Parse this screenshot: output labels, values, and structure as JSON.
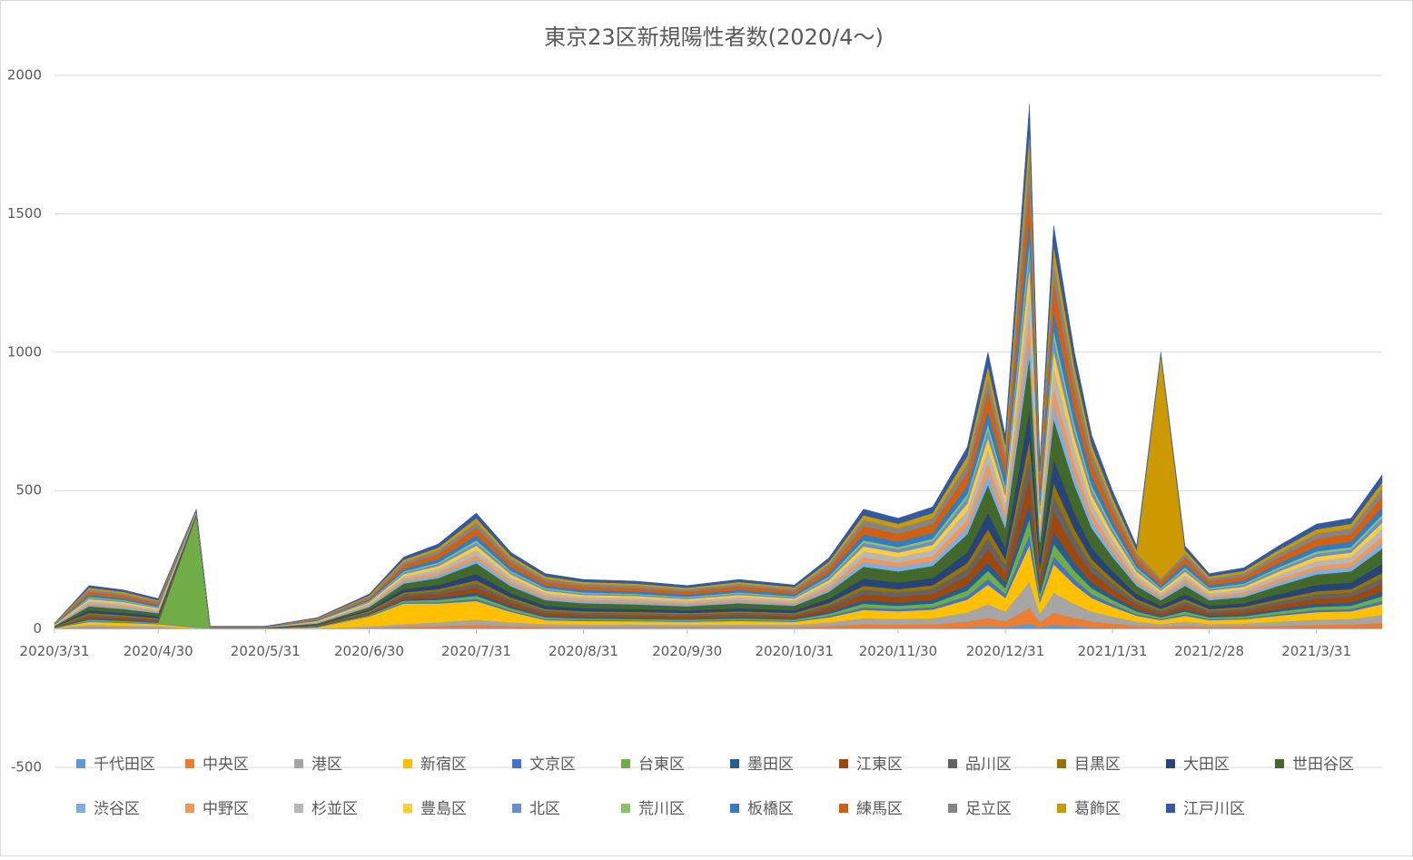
{
  "chart_data": {
    "type": "stacked_area",
    "title": "東京23区新規陽性者数(2020/4～)",
    "x": [
      "2020/3/31",
      "2020/4/10",
      "2020/4/20",
      "2020/4/30",
      "2020/5/11",
      "2020/5/15",
      "2020/5/31",
      "2020/6/15",
      "2020/6/30",
      "2020/7/10",
      "2020/7/20",
      "2020/7/31",
      "2020/8/10",
      "2020/8/20",
      "2020/8/31",
      "2020/9/15",
      "2020/9/30",
      "2020/10/15",
      "2020/10/31",
      "2020/11/10",
      "2020/11/20",
      "2020/11/30",
      "2020/12/10",
      "2020/12/20",
      "2020/12/26",
      "2020/12/31",
      "2021/1/7",
      "2021/1/10",
      "2021/1/14",
      "2021/1/20",
      "2021/1/25",
      "2021/1/31",
      "2021/2/7",
      "2021/2/14",
      "2021/2/21",
      "2021/2/28",
      "2021/3/10",
      "2021/3/20",
      "2021/3/31",
      "2021/4/10",
      "2021/4/19"
    ],
    "xlim": [
      "2020/3/31",
      "2021/4/19"
    ],
    "xticks": [
      "2020/3/31",
      "2020/4/30",
      "2020/5/31",
      "2020/6/30",
      "2020/7/31",
      "2020/8/31",
      "2020/9/30",
      "2020/10/31",
      "2020/11/30",
      "2020/12/31",
      "2021/1/31",
      "2021/2/28",
      "2021/3/31"
    ],
    "ylim": [
      -500,
      2000
    ],
    "yticks": [
      -500,
      0,
      500,
      1000,
      1500,
      2000
    ],
    "grid": true,
    "series": [
      {
        "name": "千代田区",
        "color": "#5b9bd5",
        "values": [
          0,
          2,
          1,
          1,
          0,
          0,
          0,
          0,
          1,
          2,
          3,
          4,
          3,
          2,
          2,
          2,
          2,
          2,
          2,
          3,
          4,
          4,
          4,
          7,
          10,
          7,
          19,
          6,
          15,
          10,
          7,
          5,
          3,
          2,
          3,
          2,
          2,
          3,
          4,
          4,
          6
        ]
      },
      {
        "name": "中央区",
        "color": "#ed7d31",
        "values": [
          1,
          5,
          4,
          3,
          1,
          0,
          0,
          1,
          3,
          6,
          8,
          11,
          8,
          6,
          5,
          5,
          5,
          5,
          5,
          8,
          13,
          12,
          13,
          20,
          30,
          21,
          57,
          18,
          44,
          30,
          21,
          15,
          9,
          6,
          9,
          6,
          7,
          9,
          11,
          12,
          17
        ]
      },
      {
        "name": "港区",
        "color": "#a5a5a5",
        "values": [
          1,
          8,
          7,
          6,
          2,
          1,
          1,
          2,
          5,
          10,
          13,
          19,
          13,
          10,
          9,
          9,
          8,
          9,
          8,
          13,
          22,
          20,
          22,
          33,
          50,
          35,
          95,
          30,
          73,
          50,
          35,
          25,
          15,
          10,
          15,
          10,
          11,
          15,
          19,
          20,
          28
        ]
      },
      {
        "name": "新宿区",
        "color": "#ffc000",
        "values": [
          1,
          11,
          10,
          8,
          2,
          1,
          1,
          3,
          36,
          74,
          68,
          67,
          38,
          14,
          13,
          12,
          11,
          13,
          11,
          18,
          30,
          28,
          31,
          46,
          70,
          49,
          132,
          42,
          102,
          70,
          49,
          35,
          21,
          14,
          21,
          14,
          15,
          21,
          27,
          28,
          39
        ]
      },
      {
        "name": "文京区",
        "color": "#4472c4",
        "values": [
          0,
          3,
          3,
          2,
          1,
          0,
          0,
          1,
          2,
          4,
          5,
          8,
          5,
          4,
          4,
          3,
          3,
          4,
          3,
          5,
          9,
          8,
          9,
          13,
          20,
          14,
          38,
          12,
          29,
          20,
          14,
          10,
          6,
          4,
          6,
          4,
          4,
          6,
          8,
          8,
          11
        ]
      },
      {
        "name": "台東区",
        "color": "#70ad47",
        "values": [
          1,
          5,
          4,
          3,
          401,
          0,
          0,
          1,
          3,
          6,
          8,
          11,
          8,
          6,
          5,
          5,
          5,
          5,
          5,
          8,
          13,
          12,
          13,
          20,
          30,
          21,
          57,
          18,
          44,
          30,
          21,
          15,
          9,
          6,
          9,
          6,
          7,
          9,
          11,
          12,
          17
        ]
      },
      {
        "name": "墨田区",
        "color": "#255e91",
        "values": [
          1,
          5,
          4,
          3,
          1,
          0,
          0,
          1,
          3,
          6,
          8,
          11,
          8,
          6,
          5,
          5,
          5,
          5,
          5,
          8,
          13,
          12,
          13,
          20,
          30,
          21,
          57,
          18,
          44,
          30,
          21,
          15,
          9,
          6,
          9,
          6,
          7,
          9,
          11,
          12,
          17
        ]
      },
      {
        "name": "江東区",
        "color": "#9e480e",
        "values": [
          1,
          8,
          7,
          6,
          2,
          1,
          1,
          2,
          5,
          10,
          13,
          19,
          13,
          10,
          9,
          9,
          8,
          9,
          8,
          13,
          22,
          20,
          22,
          33,
          50,
          35,
          95,
          30,
          73,
          50,
          35,
          25,
          15,
          10,
          15,
          10,
          11,
          15,
          19,
          20,
          28
        ]
      },
      {
        "name": "品川区",
        "color": "#636363",
        "values": [
          1,
          6,
          6,
          4,
          1,
          0,
          0,
          2,
          4,
          8,
          10,
          15,
          10,
          8,
          7,
          7,
          6,
          7,
          6,
          10,
          17,
          16,
          18,
          26,
          40,
          28,
          76,
          24,
          58,
          40,
          28,
          20,
          12,
          8,
          12,
          8,
          9,
          12,
          15,
          16,
          22
        ]
      },
      {
        "name": "目黒区",
        "color": "#997300",
        "values": [
          1,
          5,
          4,
          3,
          1,
          0,
          0,
          1,
          3,
          6,
          8,
          11,
          8,
          6,
          5,
          5,
          5,
          5,
          5,
          8,
          13,
          12,
          13,
          20,
          30,
          21,
          57,
          18,
          44,
          30,
          21,
          15,
          9,
          6,
          9,
          6,
          7,
          9,
          11,
          12,
          17
        ]
      },
      {
        "name": "大田区",
        "color": "#264478",
        "values": [
          1,
          9,
          8,
          7,
          2,
          1,
          1,
          2,
          5,
          12,
          15,
          23,
          15,
          12,
          11,
          10,
          9,
          11,
          10,
          15,
          26,
          24,
          26,
          39,
          60,
          42,
          113,
          36,
          87,
          60,
          42,
          30,
          18,
          12,
          18,
          12,
          13,
          18,
          23,
          24,
          33
        ]
      },
      {
        "name": "世田谷区",
        "color": "#43682b",
        "values": [
          2,
          15,
          14,
          11,
          3,
          1,
          1,
          4,
          9,
          20,
          25,
          38,
          25,
          20,
          18,
          17,
          15,
          18,
          16,
          25,
          43,
          40,
          44,
          65,
          100,
          70,
          189,
          60,
          145,
          100,
          70,
          50,
          30,
          20,
          30,
          20,
          22,
          30,
          38,
          40,
          55
        ]
      },
      {
        "name": "渋谷区",
        "color": "#7cafdd",
        "values": [
          1,
          6,
          6,
          4,
          1,
          0,
          0,
          2,
          4,
          8,
          10,
          15,
          10,
          8,
          7,
          7,
          6,
          7,
          6,
          10,
          17,
          16,
          18,
          26,
          40,
          28,
          76,
          24,
          58,
          40,
          28,
          20,
          12,
          8,
          12,
          8,
          9,
          12,
          15,
          16,
          22
        ]
      },
      {
        "name": "中野区",
        "color": "#f1975a",
        "values": [
          1,
          6,
          6,
          4,
          1,
          0,
          0,
          2,
          4,
          8,
          10,
          15,
          10,
          8,
          7,
          7,
          6,
          7,
          6,
          10,
          17,
          16,
          18,
          26,
          40,
          28,
          76,
          24,
          58,
          40,
          28,
          20,
          12,
          8,
          12,
          8,
          9,
          12,
          15,
          16,
          22
        ]
      },
      {
        "name": "杉並区",
        "color": "#b7b7b7",
        "values": [
          1,
          8,
          7,
          6,
          2,
          1,
          1,
          2,
          5,
          10,
          13,
          19,
          13,
          10,
          9,
          9,
          8,
          9,
          8,
          13,
          22,
          20,
          22,
          33,
          50,
          35,
          95,
          30,
          73,
          50,
          35,
          25,
          15,
          10,
          15,
          10,
          11,
          15,
          19,
          20,
          28
        ]
      },
      {
        "name": "豊島区",
        "color": "#ffcd33",
        "values": [
          1,
          6,
          6,
          4,
          1,
          0,
          0,
          2,
          4,
          8,
          10,
          15,
          10,
          8,
          7,
          7,
          6,
          7,
          6,
          10,
          17,
          16,
          18,
          26,
          40,
          28,
          76,
          24,
          58,
          40,
          28,
          20,
          12,
          8,
          12,
          8,
          9,
          12,
          15,
          16,
          22
        ]
      },
      {
        "name": "北区",
        "color": "#698ed0",
        "values": [
          1,
          5,
          4,
          3,
          1,
          0,
          0,
          1,
          3,
          6,
          8,
          11,
          8,
          6,
          5,
          5,
          5,
          5,
          5,
          8,
          13,
          12,
          13,
          20,
          30,
          21,
          57,
          18,
          44,
          30,
          21,
          15,
          9,
          6,
          9,
          6,
          7,
          9,
          11,
          12,
          17
        ]
      },
      {
        "name": "荒川区",
        "color": "#8cc168",
        "values": [
          0,
          3,
          3,
          2,
          1,
          0,
          0,
          1,
          2,
          4,
          5,
          8,
          5,
          4,
          4,
          3,
          3,
          4,
          3,
          5,
          9,
          8,
          9,
          13,
          20,
          14,
          38,
          12,
          29,
          20,
          14,
          10,
          6,
          4,
          6,
          4,
          4,
          6,
          8,
          8,
          11
        ]
      },
      {
        "name": "板橋区",
        "color": "#327dc2",
        "values": [
          1,
          8,
          7,
          6,
          2,
          1,
          1,
          2,
          5,
          10,
          13,
          19,
          13,
          10,
          9,
          9,
          8,
          9,
          8,
          13,
          22,
          20,
          22,
          33,
          50,
          35,
          95,
          30,
          73,
          50,
          35,
          25,
          15,
          10,
          15,
          10,
          11,
          15,
          19,
          20,
          28
        ]
      },
      {
        "name": "練馬区",
        "color": "#d26012",
        "values": [
          1,
          11,
          10,
          8,
          2,
          1,
          1,
          3,
          6,
          14,
          18,
          27,
          18,
          14,
          13,
          12,
          11,
          13,
          11,
          18,
          30,
          28,
          31,
          46,
          70,
          49,
          132,
          42,
          102,
          70,
          49,
          35,
          21,
          14,
          21,
          14,
          15,
          21,
          27,
          28,
          39
        ]
      },
      {
        "name": "足立区",
        "color": "#848484",
        "values": [
          1,
          8,
          7,
          6,
          2,
          1,
          1,
          2,
          5,
          10,
          13,
          19,
          13,
          10,
          9,
          9,
          8,
          9,
          8,
          13,
          22,
          20,
          22,
          33,
          50,
          35,
          95,
          30,
          73,
          50,
          35,
          25,
          15,
          10,
          15,
          10,
          11,
          15,
          19,
          20,
          28
        ]
      },
      {
        "name": "葛飾区",
        "color": "#cc9a00",
        "values": [
          1,
          6,
          6,
          4,
          1,
          0,
          0,
          2,
          4,
          8,
          10,
          15,
          10,
          8,
          7,
          7,
          6,
          7,
          6,
          10,
          17,
          16,
          18,
          26,
          40,
          28,
          76,
          24,
          58,
          40,
          28,
          20,
          12,
          808,
          12,
          8,
          9,
          12,
          15,
          16,
          22
        ]
      },
      {
        "name": "江戸川区",
        "color": "#335aa1",
        "values": [
          1,
          8,
          7,
          6,
          2,
          1,
          1,
          2,
          5,
          10,
          13,
          19,
          13,
          10,
          9,
          9,
          8,
          9,
          8,
          13,
          22,
          20,
          22,
          33,
          50,
          35,
          95,
          30,
          73,
          50,
          35,
          25,
          15,
          10,
          15,
          10,
          11,
          15,
          19,
          20,
          28
        ]
      }
    ]
  }
}
